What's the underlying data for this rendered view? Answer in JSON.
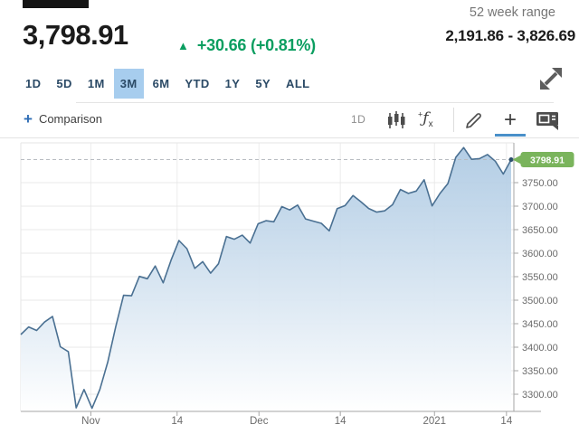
{
  "header": {
    "symbol_redacted": "",
    "price": "3,798.91",
    "change": "+30.66 (+0.81%)",
    "direction": "up",
    "range": {
      "label": "52 week range",
      "value": "2,191.86 - 3,826.69"
    }
  },
  "tabs": {
    "items": [
      "1D",
      "5D",
      "1M",
      "3M",
      "6M",
      "YTD",
      "1Y",
      "5Y",
      "ALL"
    ],
    "selected": "3M"
  },
  "toolbar": {
    "comparison": "Comparison",
    "interval": "1D",
    "icons": [
      "candlestick-icon",
      "fx-functions-icon",
      "pencil-icon",
      "add-indicator-icon",
      "annotation-icon"
    ],
    "active_icon": "add-indicator-icon"
  },
  "colors": {
    "up_green": "#0b9e60",
    "pill_green": "#7ab45c",
    "line": "#4a7092",
    "fill_top": "#abc8e2",
    "fill_bottom": "#ffffff",
    "tab_selected_bg": "#a7cdee",
    "tab_text": "#2b4a66",
    "axis": "#a6a6a6",
    "grid": "#e8e8e8",
    "label_gray": "#6b6b6b",
    "active_underline": "#4a90c9"
  },
  "chart_data": {
    "type": "area",
    "title": "",
    "xlabel": "",
    "ylabel": "",
    "grid": true,
    "legend_position": "none",
    "ylim": [
      3263.5,
      3834.6
    ],
    "current_price": 3798.91,
    "current_price_label": "3798.91",
    "y_ticks": [
      3300,
      3350,
      3400,
      3450,
      3500,
      3550,
      3600,
      3650,
      3700,
      3750
    ],
    "x_ticks": [
      {
        "label": "Nov",
        "pos": 0.142
      },
      {
        "label": "14",
        "pos": 0.317
      },
      {
        "label": "Dec",
        "pos": 0.483
      },
      {
        "label": "14",
        "pos": 0.648
      },
      {
        "label": "2021",
        "pos": 0.839
      },
      {
        "label": "14",
        "pos": 0.985
      }
    ],
    "x": [
      "2020-10-19",
      "2020-10-20",
      "2020-10-21",
      "2020-10-22",
      "2020-10-23",
      "2020-10-26",
      "2020-10-27",
      "2020-10-28",
      "2020-10-29",
      "2020-10-30",
      "2020-11-02",
      "2020-11-03",
      "2020-11-04",
      "2020-11-05",
      "2020-11-06",
      "2020-11-09",
      "2020-11-10",
      "2020-11-11",
      "2020-11-12",
      "2020-11-13",
      "2020-11-16",
      "2020-11-17",
      "2020-11-18",
      "2020-11-19",
      "2020-11-20",
      "2020-11-23",
      "2020-11-24",
      "2020-11-25",
      "2020-11-27",
      "2020-11-30",
      "2020-12-01",
      "2020-12-02",
      "2020-12-03",
      "2020-12-04",
      "2020-12-07",
      "2020-12-08",
      "2020-12-09",
      "2020-12-10",
      "2020-12-11",
      "2020-12-14",
      "2020-12-15",
      "2020-12-16",
      "2020-12-17",
      "2020-12-18",
      "2020-12-21",
      "2020-12-22",
      "2020-12-23",
      "2020-12-24",
      "2020-12-28",
      "2020-12-29",
      "2020-12-30",
      "2020-12-31",
      "2021-01-04",
      "2021-01-05",
      "2021-01-06",
      "2021-01-07",
      "2021-01-08",
      "2021-01-11",
      "2021-01-12",
      "2021-01-13",
      "2021-01-14",
      "2021-01-15",
      "2021-01-19"
    ],
    "values": [
      3426.92,
      3443.12,
      3435.56,
      3453.49,
      3465.39,
      3400.97,
      3390.68,
      3271.03,
      3310.11,
      3269.96,
      3310.24,
      3369.16,
      3443.44,
      3510.45,
      3509.44,
      3550.5,
      3545.53,
      3572.66,
      3537.01,
      3585.15,
      3626.91,
      3609.53,
      3567.79,
      3581.87,
      3557.54,
      3577.59,
      3635.41,
      3629.65,
      3638.35,
      3621.63,
      3662.45,
      3669.01,
      3666.72,
      3699.12,
      3691.96,
      3702.25,
      3672.82,
      3668.1,
      3663.46,
      3647.49,
      3694.62,
      3701.17,
      3722.48,
      3709.41,
      3694.92,
      3687.26,
      3690.01,
      3703.06,
      3735.36,
      3727.04,
      3732.04,
      3756.07,
      3700.65,
      3726.86,
      3748.14,
      3803.79,
      3824.68,
      3799.61,
      3801.19,
      3809.84,
      3795.54,
      3768.25,
      3798.91
    ]
  }
}
